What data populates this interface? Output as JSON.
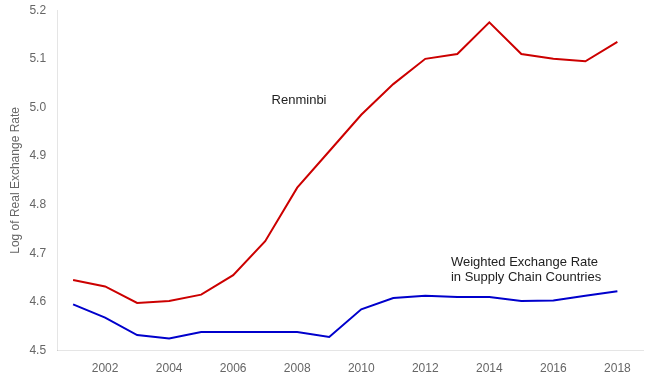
{
  "chart_data": {
    "type": "line",
    "x": [
      2001,
      2002,
      2003,
      2004,
      2005,
      2006,
      2007,
      2008,
      2009,
      2010,
      2011,
      2012,
      2013,
      2014,
      2015,
      2016,
      2017,
      2018
    ],
    "series": [
      {
        "color": "#cc0000",
        "values": [
          4.645,
          4.632,
          4.598,
          4.602,
          4.615,
          4.655,
          4.725,
          4.835,
          4.91,
          4.985,
          5.048,
          5.1,
          5.11,
          5.175,
          5.11,
          5.1,
          5.095,
          5.135
        ]
      },
      {
        "color": "#0000cc",
        "values": [
          4.595,
          4.568,
          4.532,
          4.525,
          4.538,
          4.538,
          4.538,
          4.538,
          4.528,
          4.585,
          4.608,
          4.613,
          4.61,
          4.61,
          4.602,
          4.603,
          4.613,
          4.622
        ]
      }
    ],
    "y_label": "Log of Real Exchange Rate",
    "xlim": [
      2000.5,
      2018.8
    ],
    "xticks": [
      2002,
      2004,
      2006,
      2008,
      2010,
      2012,
      2014,
      2016,
      2018
    ],
    "ylim": [
      4.5,
      5.2
    ],
    "yticks": [
      4.5,
      4.6,
      4.7,
      4.8,
      4.9,
      {
        "value": 5,
        "label": "5.0"
      },
      5.1,
      5.2
    ],
    "annotations": [
      {
        "text": "Renminbi",
        "x": 2007.2,
        "y": 4.995
      },
      {
        "text": "Weighted Exchange Rate\nin Supply Chain Countries",
        "x": 2012.8,
        "y": 4.695
      }
    ],
    "grid": false
  }
}
